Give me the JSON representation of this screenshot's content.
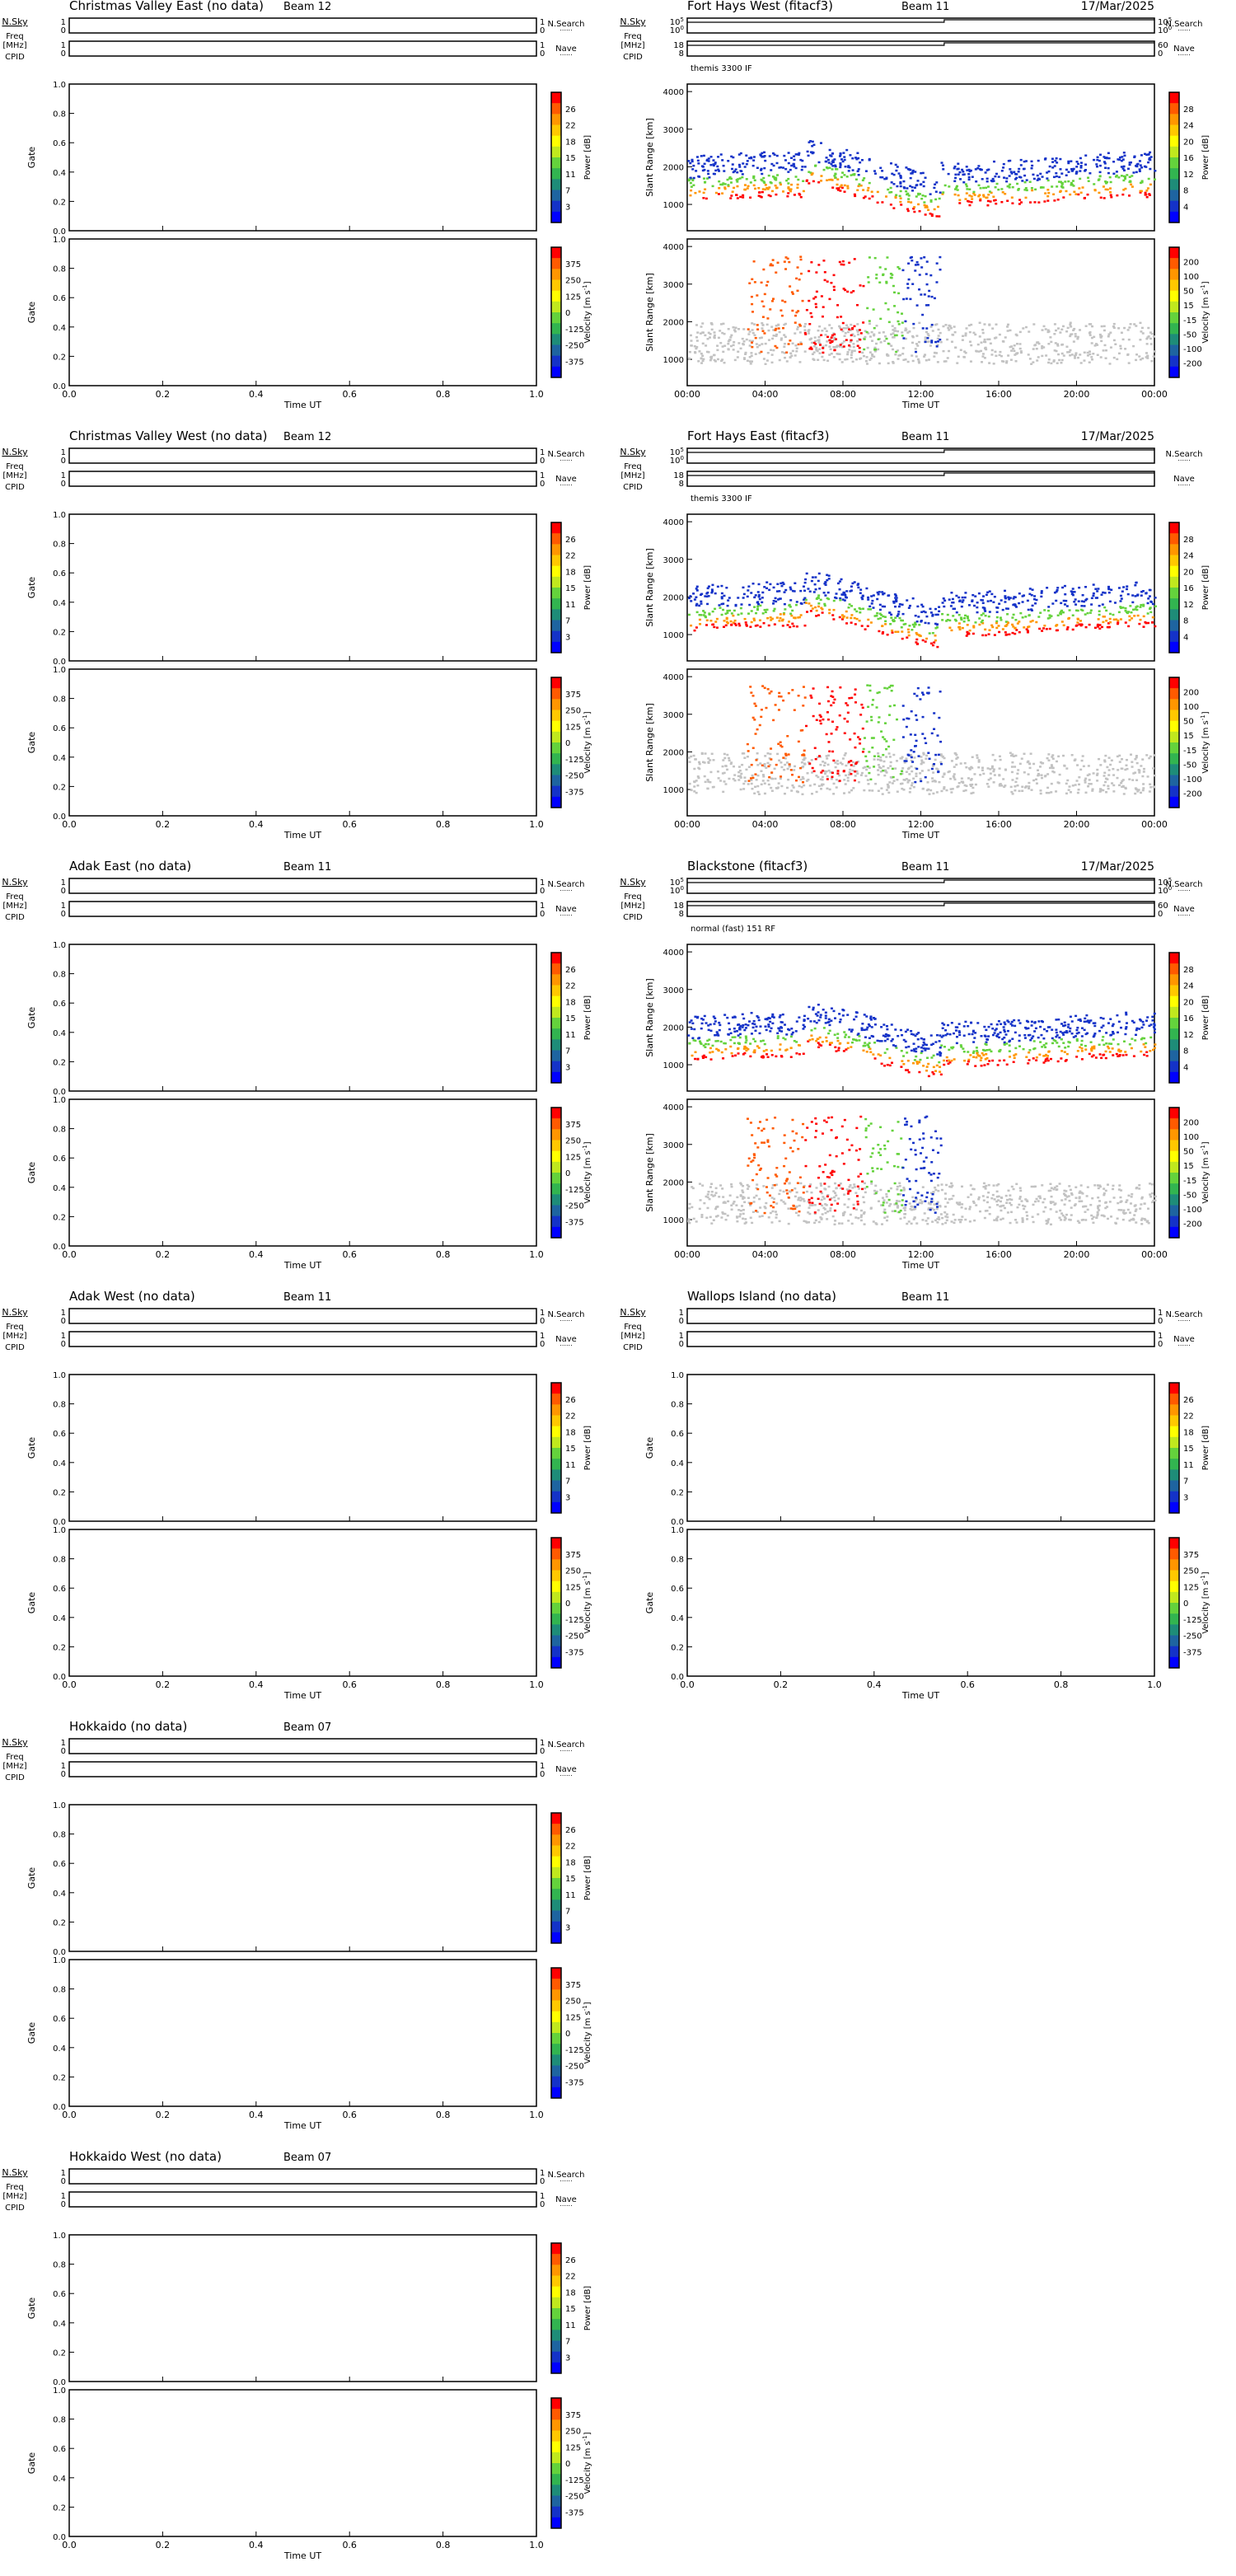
{
  "labels": {
    "nsky": "N.Sky",
    "freq": "Freq",
    "mhz": "[MHz]",
    "cpid": "CPID",
    "nsearch": "N.Search",
    "nave": "Nave",
    "gate": "Gate",
    "slant_range": "Slant Range [km]",
    "time_ut": "Time UT",
    "power_label": "Power [dB]",
    "velocity_label": "Velocity [m s",
    "velocity_exp": "-1",
    "velocity_close": "]"
  },
  "colors": {
    "scale": [
      "#ff0000",
      "#ff5a00",
      "#ff9600",
      "#ffc800",
      "#ffff00",
      "#c0e81e",
      "#64d23c",
      "#32b450",
      "#1e8c78",
      "#1e64a0",
      "#1432c8",
      "#0000ff"
    ],
    "ground_scatter": "#c2c2c2",
    "noise_line": "#000000"
  },
  "chart_data": [
    {
      "type": "heatmap",
      "title": "Christmas Valley East (no data)",
      "beam": "Beam 12",
      "has_data": false,
      "x_ticks": [
        "0.0",
        "0.2",
        "0.4",
        "0.6",
        "0.8",
        "1.0"
      ],
      "gate_ticks": [
        "0.0",
        "0.2",
        "0.4",
        "0.6",
        "0.8",
        "1.0"
      ],
      "power_scale": [
        "26",
        "22",
        "18",
        "15",
        "11",
        "7",
        "3"
      ],
      "velocity_scale": [
        "375",
        "250",
        "125",
        "0",
        "-125",
        "-250",
        "-375"
      ]
    },
    {
      "type": "heatmap",
      "title": "Fort Hays West (fitacf3)",
      "beam": "Beam 11",
      "date": "17/Mar/2025",
      "has_data": true,
      "mode": "themis 3300 IF",
      "x_ticks": [
        "00:00",
        "04:00",
        "08:00",
        "12:00",
        "16:00",
        "20:00",
        "00:00"
      ],
      "range_ticks": [
        "1000",
        "2000",
        "3000",
        "4000"
      ],
      "nsky_ticks": [
        "10^5",
        "10^0"
      ],
      "nsearch_ticks": [
        "10^5",
        "10^0"
      ],
      "freq_ticks": [
        "18",
        "8"
      ],
      "nave_ticks": [
        "60",
        "0"
      ],
      "power_scale": [
        "28",
        "24",
        "20",
        "16",
        "12",
        "8",
        "4"
      ],
      "velocity_scale": [
        "200",
        "100",
        "50",
        "15",
        "-15",
        "-50",
        "-100",
        "-200"
      ]
    },
    {
      "type": "heatmap",
      "title": "Christmas Valley West (no data)",
      "beam": "Beam 12",
      "has_data": false,
      "x_ticks": [
        "0.0",
        "0.2",
        "0.4",
        "0.6",
        "0.8",
        "1.0"
      ],
      "gate_ticks": [
        "0.0",
        "0.2",
        "0.4",
        "0.6",
        "0.8",
        "1.0"
      ],
      "power_scale": [
        "26",
        "22",
        "18",
        "15",
        "11",
        "7",
        "3"
      ],
      "velocity_scale": [
        "375",
        "250",
        "125",
        "0",
        "-125",
        "-250",
        "-375"
      ]
    },
    {
      "type": "heatmap",
      "title": "Fort Hays East (fitacf3)",
      "beam": "Beam 11",
      "date": "17/Mar/2025",
      "has_data": true,
      "mode": "themis 3300 IF",
      "x_ticks": [
        "00:00",
        "04:00",
        "08:00",
        "12:00",
        "16:00",
        "20:00",
        "00:00"
      ],
      "range_ticks": [
        "1000",
        "2000",
        "3000",
        "4000"
      ],
      "nsky_ticks": [
        "10^5",
        "10^0"
      ],
      "freq_ticks": [
        "18",
        "8"
      ],
      "power_scale": [
        "28",
        "24",
        "20",
        "16",
        "12",
        "8",
        "4"
      ],
      "velocity_scale": [
        "200",
        "100",
        "50",
        "15",
        "-15",
        "-50",
        "-100",
        "-200"
      ]
    },
    {
      "type": "heatmap",
      "title": "Adak East (no data)",
      "beam": "Beam 11",
      "has_data": false,
      "x_ticks": [
        "0.0",
        "0.2",
        "0.4",
        "0.6",
        "0.8",
        "1.0"
      ],
      "gate_ticks": [
        "0.0",
        "0.2",
        "0.4",
        "0.6",
        "0.8",
        "1.0"
      ],
      "power_scale": [
        "26",
        "22",
        "18",
        "15",
        "11",
        "7",
        "3"
      ],
      "velocity_scale": [
        "375",
        "250",
        "125",
        "0",
        "-125",
        "-250",
        "-375"
      ]
    },
    {
      "type": "heatmap",
      "title": "Blackstone (fitacf3)",
      "beam": "Beam 11",
      "date": "17/Mar/2025",
      "has_data": true,
      "mode": "normal (fast) 151 RF",
      "x_ticks": [
        "00:00",
        "04:00",
        "08:00",
        "12:00",
        "16:00",
        "20:00",
        "00:00"
      ],
      "range_ticks": [
        "1000",
        "2000",
        "3000",
        "4000"
      ],
      "nsky_ticks": [
        "10^5",
        "10^0"
      ],
      "nsearch_ticks": [
        "10^5",
        "10^0"
      ],
      "freq_ticks": [
        "18",
        "8"
      ],
      "nave_ticks": [
        "60",
        "0"
      ],
      "power_scale": [
        "28",
        "24",
        "20",
        "16",
        "12",
        "8",
        "4"
      ],
      "velocity_scale": [
        "200",
        "100",
        "50",
        "15",
        "-15",
        "-50",
        "-100",
        "-200"
      ]
    },
    {
      "type": "heatmap",
      "title": "Adak West (no data)",
      "beam": "Beam 11",
      "has_data": false,
      "x_ticks": [
        "0.0",
        "0.2",
        "0.4",
        "0.6",
        "0.8",
        "1.0"
      ],
      "gate_ticks": [
        "0.0",
        "0.2",
        "0.4",
        "0.6",
        "0.8",
        "1.0"
      ],
      "power_scale": [
        "26",
        "22",
        "18",
        "15",
        "11",
        "7",
        "3"
      ],
      "velocity_scale": [
        "375",
        "250",
        "125",
        "0",
        "-125",
        "-250",
        "-375"
      ]
    },
    {
      "type": "heatmap",
      "title": "Wallops Island (no data)",
      "beam": "Beam 11",
      "has_data": false,
      "x_ticks": [
        "0.0",
        "0.2",
        "0.4",
        "0.6",
        "0.8",
        "1.0"
      ],
      "gate_ticks": [
        "0.0",
        "0.2",
        "0.4",
        "0.6",
        "0.8",
        "1.0"
      ],
      "power_scale": [
        "26",
        "22",
        "18",
        "15",
        "11",
        "7",
        "3"
      ],
      "velocity_scale": [
        "375",
        "250",
        "125",
        "0",
        "-125",
        "-250",
        "-375"
      ]
    },
    {
      "type": "heatmap",
      "title": "Hokkaido (no data)",
      "beam": "Beam 07",
      "has_data": false,
      "x_ticks": [
        "0.0",
        "0.2",
        "0.4",
        "0.6",
        "0.8",
        "1.0"
      ],
      "gate_ticks": [
        "0.0",
        "0.2",
        "0.4",
        "0.6",
        "0.8",
        "1.0"
      ],
      "power_scale": [
        "26",
        "22",
        "18",
        "15",
        "11",
        "7",
        "3"
      ],
      "velocity_scale": [
        "375",
        "250",
        "125",
        "0",
        "-125",
        "-250",
        "-375"
      ]
    },
    {
      "type": "heatmap",
      "title": "Hokkaido West (no data)",
      "beam": "Beam 07",
      "has_data": false,
      "x_ticks": [
        "0.0",
        "0.2",
        "0.4",
        "0.6",
        "0.8",
        "1.0"
      ],
      "gate_ticks": [
        "0.0",
        "0.2",
        "0.4",
        "0.6",
        "0.8",
        "1.0"
      ],
      "power_scale": [
        "26",
        "22",
        "18",
        "15",
        "11",
        "7",
        "3"
      ],
      "velocity_scale": [
        "375",
        "250",
        "125",
        "0",
        "-125",
        "-250",
        "-375"
      ]
    }
  ]
}
